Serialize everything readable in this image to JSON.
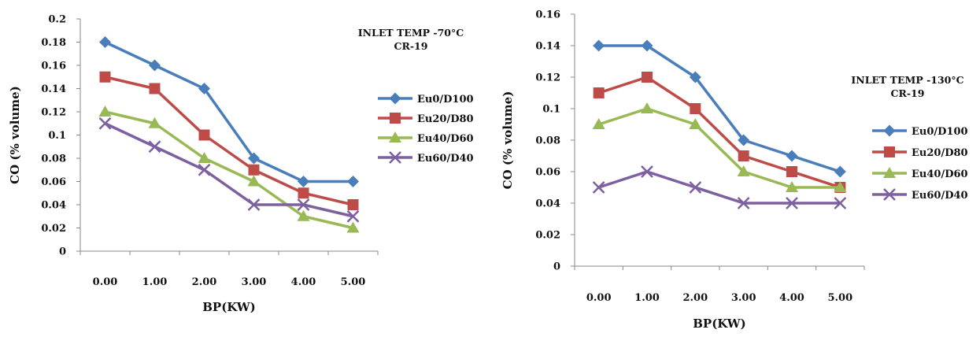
{
  "chart_data": [
    {
      "type": "line",
      "annotation": [
        "INLET TEMP -70°C",
        "CR-19"
      ],
      "xlabel": "BP(KW)",
      "ylabel": "CO (% volume)",
      "categories": [
        "0.00",
        "1.00",
        "2.00",
        "3.00",
        "4.00",
        "5.00"
      ],
      "ylim": [
        0,
        0.2
      ],
      "yticks": [
        "0",
        "0.02",
        "0.04",
        "0.06",
        "0.08",
        "0.1",
        "0.12",
        "0.14",
        "0.16",
        "0.18",
        "0.2"
      ],
      "legend_position": "right",
      "series": [
        {
          "name": "Eu0/D100",
          "color": "#4a7ebb",
          "marker": "diamond",
          "values": [
            0.18,
            0.16,
            0.14,
            0.08,
            0.06,
            0.06
          ]
        },
        {
          "name": "Eu20/D80",
          "color": "#be4b48",
          "marker": "square",
          "values": [
            0.15,
            0.14,
            0.1,
            0.07,
            0.05,
            0.04
          ]
        },
        {
          "name": "Eu40/D60",
          "color": "#98b954",
          "marker": "triangle",
          "values": [
            0.12,
            0.11,
            0.08,
            0.06,
            0.03,
            0.02
          ]
        },
        {
          "name": "Eu60/D40",
          "color": "#7d60a0",
          "marker": "x",
          "values": [
            0.11,
            0.09,
            0.07,
            0.04,
            0.04,
            0.03
          ]
        }
      ]
    },
    {
      "type": "line",
      "annotation": [
        "INLET TEMP -130°C",
        "CR-19"
      ],
      "xlabel": "BP(KW)",
      "ylabel": "CO (% volume)",
      "categories": [
        "0.00",
        "1.00",
        "2.00",
        "3.00",
        "4.00",
        "5.00"
      ],
      "ylim": [
        0,
        0.16
      ],
      "yticks": [
        "0",
        "0.02",
        "0.04",
        "0.06",
        "0.08",
        "0.1",
        "0.12",
        "0.14",
        "0.16"
      ],
      "legend_position": "right",
      "series": [
        {
          "name": "Eu0/D100",
          "color": "#4a7ebb",
          "marker": "diamond",
          "values": [
            0.14,
            0.14,
            0.12,
            0.08,
            0.07,
            0.06
          ]
        },
        {
          "name": "Eu20/D80",
          "color": "#be4b48",
          "marker": "square",
          "values": [
            0.11,
            0.12,
            0.1,
            0.07,
            0.06,
            0.05
          ]
        },
        {
          "name": "Eu40/D60",
          "color": "#98b954",
          "marker": "triangle",
          "values": [
            0.09,
            0.1,
            0.09,
            0.06,
            0.05,
            0.05
          ]
        },
        {
          "name": "Eu60/D40",
          "color": "#7d60a0",
          "marker": "x",
          "values": [
            0.05,
            0.06,
            0.05,
            0.04,
            0.04,
            0.04
          ]
        }
      ]
    }
  ]
}
